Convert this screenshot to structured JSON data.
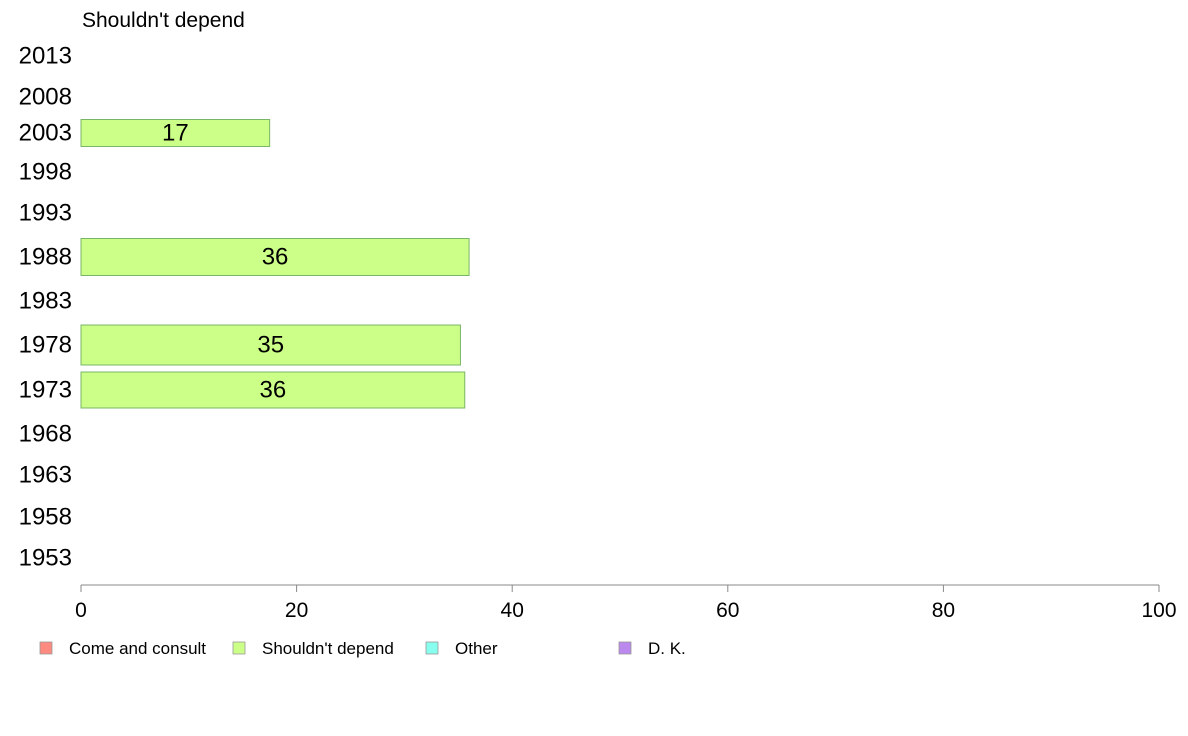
{
  "chart_data": {
    "type": "bar",
    "orientation": "horizontal",
    "title": "Shouldn't depend",
    "categories": [
      "2013",
      "2008",
      "2003",
      "1998",
      "1993",
      "1988",
      "1983",
      "1978",
      "1973",
      "1968",
      "1963",
      "1958",
      "1953"
    ],
    "series": [
      {
        "name": "Shouldn't depend",
        "color": "#ccff88",
        "values": [
          null,
          null,
          17.5,
          null,
          null,
          36,
          null,
          35.2,
          35.6,
          null,
          null,
          null,
          null
        ],
        "labels": [
          "",
          "",
          "17",
          "",
          "",
          "36",
          "",
          "35",
          "36",
          "",
          "",
          "",
          ""
        ]
      }
    ],
    "xlim": [
      0,
      100
    ],
    "xticks": [
      "0",
      "20",
      "40",
      "60",
      "80",
      "100"
    ],
    "grid": false,
    "legend_position": "bottom",
    "legend": [
      {
        "label": "Come and consult",
        "color": "#ff8a80"
      },
      {
        "label": "Shouldn't depend",
        "color": "#ccff88"
      },
      {
        "label": "Other",
        "color": "#88ffee"
      },
      {
        "label": "D. K.",
        "color": "#bb88ee"
      }
    ]
  }
}
